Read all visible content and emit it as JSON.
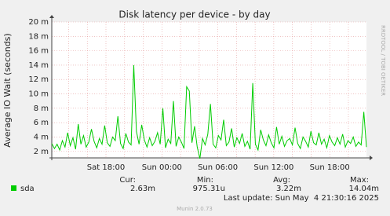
{
  "chart_data": {
    "type": "line",
    "title": "Disk latency per device - by day",
    "y_label": "Average IO Wait (seconds)",
    "side_label": "RRDTOOL / TOBI OETIKER",
    "footer": "Munin 2.0.73",
    "x_tick_labels": [
      "Sat 18:00",
      "Sun 00:00",
      "Sun 06:00",
      "Sun 12:00",
      "Sun 18:00"
    ],
    "ylim": [
      0.0011,
      0.02
    ],
    "yticks": [
      {
        "value": 0.002,
        "label": "2 m"
      },
      {
        "value": 0.004,
        "label": "4 m"
      },
      {
        "value": 0.006,
        "label": "6 m"
      },
      {
        "value": 0.008,
        "label": "8 m"
      },
      {
        "value": 0.01,
        "label": "10 m"
      },
      {
        "value": 0.012,
        "label": "12 m"
      },
      {
        "value": 0.014,
        "label": "14 m"
      },
      {
        "value": 0.016,
        "label": "16 m"
      },
      {
        "value": 0.018,
        "label": "18 m"
      },
      {
        "value": 0.02,
        "label": "20 m"
      }
    ],
    "grid": true,
    "series": [
      {
        "name": "sda",
        "color": "#00cc00",
        "values": [
          0.0031,
          0.0024,
          0.003,
          0.0022,
          0.0035,
          0.0026,
          0.0046,
          0.0028,
          0.0039,
          0.0023,
          0.0058,
          0.003,
          0.0042,
          0.0026,
          0.0033,
          0.0051,
          0.0034,
          0.0025,
          0.0038,
          0.003,
          0.0056,
          0.0032,
          0.0027,
          0.004,
          0.0035,
          0.0069,
          0.0031,
          0.0024,
          0.0045,
          0.0033,
          0.0029,
          0.014,
          0.0048,
          0.003,
          0.0057,
          0.0036,
          0.0026,
          0.0039,
          0.0028,
          0.0034,
          0.0046,
          0.003,
          0.008,
          0.0025,
          0.0037,
          0.0031,
          0.009,
          0.0027,
          0.004,
          0.0033,
          0.0024,
          0.011,
          0.0104,
          0.0032,
          0.0055,
          0.0026,
          0.001,
          0.0038,
          0.0029,
          0.0044,
          0.0086,
          0.003,
          0.0025,
          0.0042,
          0.0036,
          0.0064,
          0.0028,
          0.0033,
          0.0052,
          0.0026,
          0.0039,
          0.0031,
          0.0045,
          0.0027,
          0.0034,
          0.0023,
          0.0115,
          0.003,
          0.0022,
          0.005,
          0.0036,
          0.0028,
          0.0043,
          0.0032,
          0.0025,
          0.0054,
          0.003,
          0.0041,
          0.0027,
          0.0035,
          0.0038,
          0.0029,
          0.0053,
          0.0031,
          0.0024,
          0.004,
          0.0034,
          0.0026,
          0.0048,
          0.0032,
          0.0029,
          0.0046,
          0.003,
          0.0037,
          0.0025,
          0.0042,
          0.0033,
          0.0028,
          0.0039,
          0.003,
          0.0044,
          0.0026,
          0.0035,
          0.0031,
          0.004,
          0.0027,
          0.0033,
          0.0029,
          0.0075,
          0.0026
        ],
        "stats": {
          "cur_label": "Cur:",
          "cur": "2.63m",
          "min_label": "Min:",
          "min": "975.31u",
          "avg_label": "Avg:",
          "avg": "3.22m",
          "max_label": "Max:",
          "max": "14.04m"
        }
      }
    ],
    "last_update": "Last update: Sun May  4 21:30:16 2025"
  }
}
